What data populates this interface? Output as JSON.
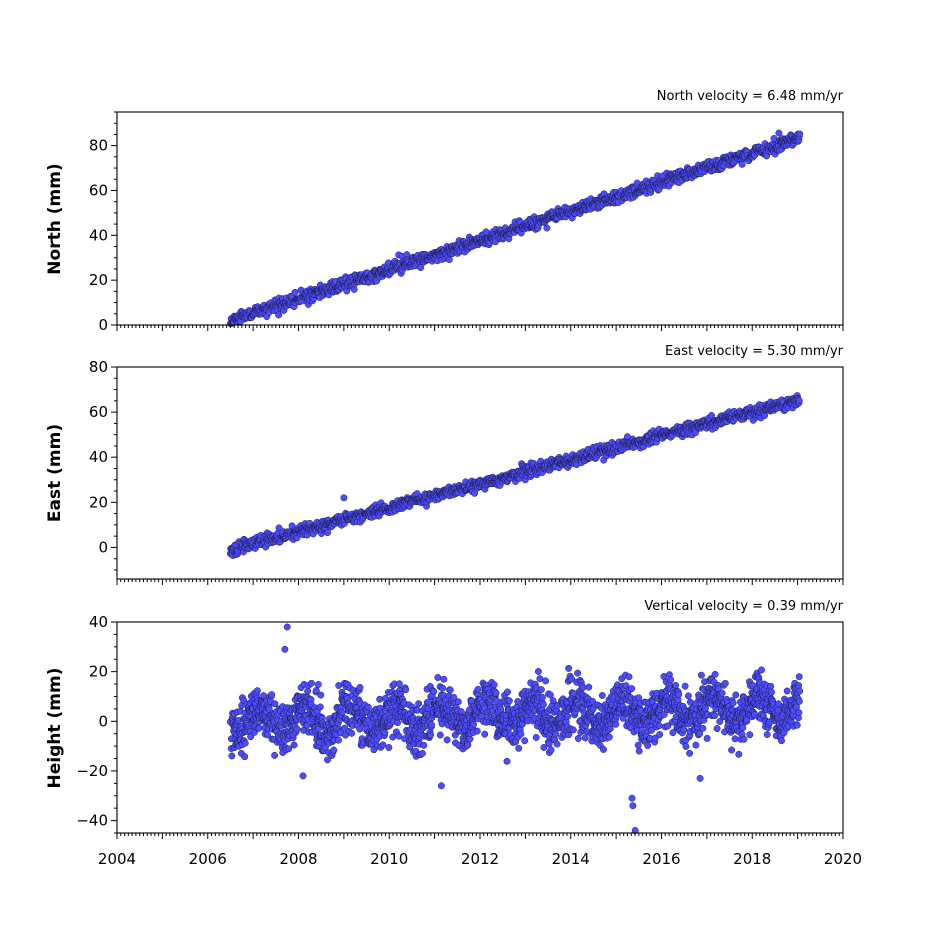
{
  "chart_data": [
    {
      "type": "scatter",
      "title": "North velocity = 6.48 mm/yr",
      "ylabel": "North (mm)",
      "xlim": [
        2004,
        2020
      ],
      "ylim": [
        0,
        95
      ],
      "yticks": [
        0,
        20,
        40,
        60,
        80
      ],
      "x_tick_labels_shown": false,
      "series": [
        {
          "x_range": [
            2006.5,
            2019.05
          ],
          "trend": {
            "start": 2,
            "slope_mm_per_yr": 6.48
          },
          "scatter_sd": 1.4,
          "outliers": []
        }
      ]
    },
    {
      "type": "scatter",
      "title": "East velocity = 5.30 mm/yr",
      "ylabel": "East (mm)",
      "xlim": [
        2004,
        2020
      ],
      "ylim": [
        -14,
        80
      ],
      "yticks": [
        0,
        20,
        40,
        60,
        80
      ],
      "x_tick_labels_shown": false,
      "series": [
        {
          "x_range": [
            2006.5,
            2019.05
          ],
          "trend": {
            "start": -1,
            "slope_mm_per_yr": 5.3
          },
          "scatter_sd": 1.3,
          "outliers": [
            [
              2009.0,
              22
            ]
          ]
        }
      ]
    },
    {
      "type": "scatter",
      "title": "Vertical velocity = 0.39 mm/yr",
      "ylabel": "Height (mm)",
      "xlim": [
        2004,
        2020
      ],
      "ylim": [
        -45,
        40
      ],
      "yticks": [
        -40,
        -20,
        0,
        20,
        40
      ],
      "xticks": [
        2004,
        2006,
        2008,
        2010,
        2012,
        2014,
        2016,
        2018,
        2020
      ],
      "x_tick_labels_shown": true,
      "series": [
        {
          "x_range": [
            2006.5,
            2019.05
          ],
          "trend": {
            "start": 0,
            "slope_mm_per_yr": 0.39
          },
          "seasonal_amplitude_mm": 5,
          "scatter_sd": 5,
          "outliers": [
            [
              2007.75,
              38
            ],
            [
              2007.7,
              29
            ],
            [
              2011.15,
              -26
            ],
            [
              2015.35,
              -31
            ],
            [
              2015.37,
              -34
            ],
            [
              2015.42,
              -44
            ],
            [
              2008.1,
              -22
            ],
            [
              2016.85,
              -23
            ]
          ]
        }
      ]
    }
  ],
  "colors": {
    "marker_fill": "#4d4dff",
    "marker_edge": "#1a1a40"
  }
}
